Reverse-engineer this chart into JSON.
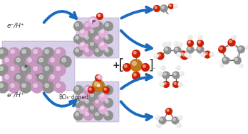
{
  "background_color": "#ffffff",
  "blue_arrow_color": "#1a6bbf",
  "gray_atom": "#909090",
  "gray_atom_dark": "#707070",
  "pink_atom": "#c896c0",
  "pink_light": "#e0b0d8",
  "red_atom": "#cc2000",
  "gold_atom": "#c07818",
  "white_atom": "#e8e8e8",
  "label_eH_top": "e⁻/H⁺",
  "label_eH_bot": "e⁻/H⁺",
  "label_BO3": "BO₃⁻doped",
  "fig_width": 3.48,
  "fig_height": 1.89
}
